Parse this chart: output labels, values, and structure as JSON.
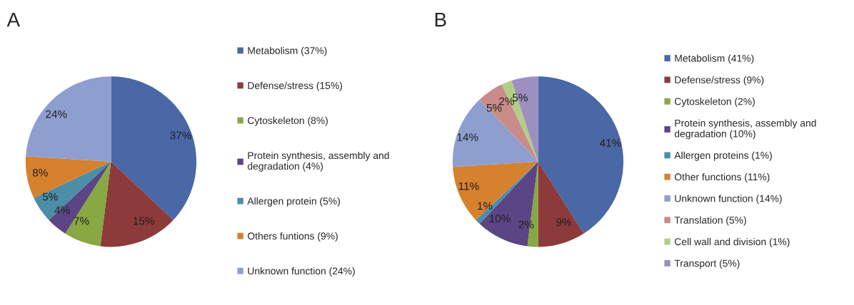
{
  "chart_data": [
    {
      "type": "pie",
      "title": "A",
      "categories": [
        "Metabolism (37%)",
        "Defense/stress (15%)",
        "Cytoskeleton (8%)",
        "Protein synthesis, assembly and\ndegradation (4%)",
        "Allergen protein (5%)",
        "Others funtions (9%)",
        "Unknown function (24%)"
      ],
      "values": [
        37,
        15,
        7,
        4,
        5,
        8,
        24
      ],
      "value_labels": [
        "37%",
        "15%",
        "7%",
        "4%",
        "5%",
        "8%",
        "24%"
      ],
      "colors": [
        "#4a67a6",
        "#8c3a3a",
        "#87a843",
        "#5b4585",
        "#4b8ea6",
        "#d6812d",
        "#8e9fcf"
      ],
      "legend": "right"
    },
    {
      "type": "pie",
      "title": "B",
      "categories": [
        "Metabolism (41%)",
        "Defense/stress (9%)",
        "Cytoskeleton (2%)",
        "Protein synthesis, assembly and\ndegradation (10%)",
        "Allergen proteins (1%)",
        "Other functions (11%)",
        "Unknown function (14%)",
        "Translation (5%)",
        "Cell wall and division (1%)",
        "Transport (5%)"
      ],
      "values": [
        41,
        9,
        2,
        10,
        1,
        11,
        14,
        5,
        2,
        5
      ],
      "value_labels": [
        "41%",
        "9%",
        "2%",
        "10%",
        "1%",
        "11%",
        "14%",
        "5%",
        "2%",
        "5%"
      ],
      "colors": [
        "#4a67a6",
        "#8c3a3a",
        "#87a843",
        "#5b4585",
        "#4b8ea6",
        "#d6812d",
        "#8e9fcf",
        "#c98c89",
        "#b3cf86",
        "#9d8fc0"
      ],
      "legend": "right"
    }
  ]
}
